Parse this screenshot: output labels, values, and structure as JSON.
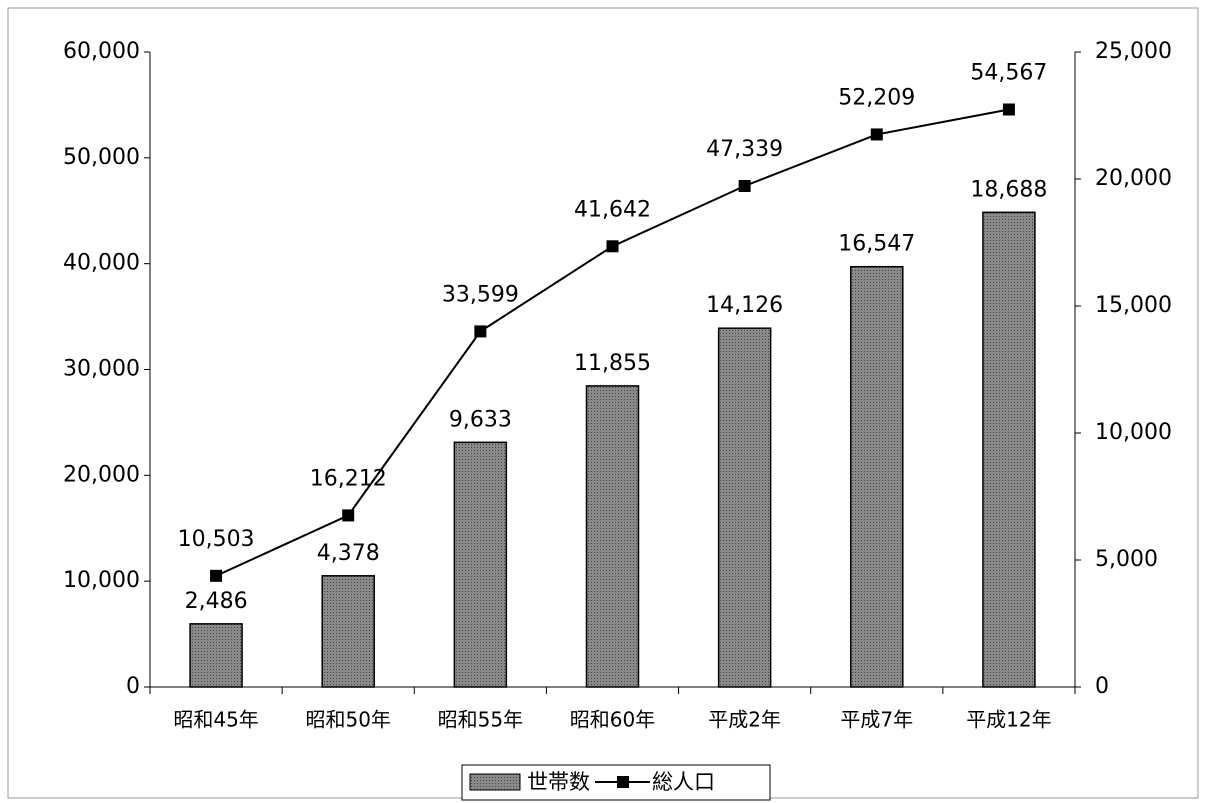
{
  "chart_data": {
    "type": "combo",
    "categories": [
      "昭和45年",
      "昭和50年",
      "昭和55年",
      "昭和60年",
      "平成2年",
      "平成7年",
      "平成12年"
    ],
    "series": [
      {
        "name": "世帯数",
        "type": "bar",
        "axis": "y2",
        "color": "#7a7a7a",
        "values": [
          2486,
          4378,
          9633,
          11855,
          14126,
          16547,
          18688
        ],
        "value_labels": [
          "2,486",
          "4,378",
          "9,633",
          "11,855",
          "14,126",
          "16,547",
          "18,688"
        ]
      },
      {
        "name": "総人口",
        "type": "line",
        "color": "#000000",
        "values": [
          10503,
          16212,
          33599,
          41642,
          47339,
          52209,
          54567
        ],
        "value_labels": [
          "10,503",
          "16,212",
          "33,599",
          "41,642",
          "47,339",
          "52,209",
          "54,567"
        ]
      }
    ],
    "ylim": [
      0,
      60000
    ],
    "yticks": [
      0,
      {
        "value": 10000,
        "label": "10,000"
      },
      {
        "value": 20000,
        "label": "20,000"
      },
      {
        "value": 30000,
        "label": "30,000"
      },
      {
        "value": 40000,
        "label": "40,000"
      },
      {
        "value": 50000,
        "label": "50,000"
      },
      {
        "value": 60000,
        "label": "60,000"
      }
    ],
    "y2lim": [
      0,
      25000
    ],
    "y2ticks": [
      0,
      {
        "value": 5000,
        "label": "5,000"
      },
      {
        "value": 10000,
        "label": "10,000"
      },
      {
        "value": 15000,
        "label": "15,000"
      },
      {
        "value": 20000,
        "label": "20,000"
      },
      {
        "value": 25000,
        "label": "25,000"
      }
    ],
    "legend": "bottom"
  }
}
